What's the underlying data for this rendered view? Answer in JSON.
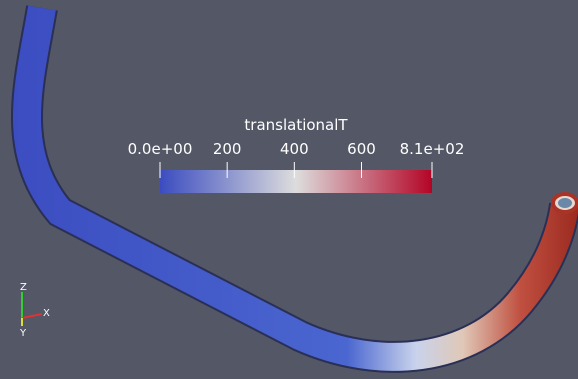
{
  "colorbar": {
    "title": "translationalT",
    "range": [
      0,
      810
    ],
    "ticks": [
      {
        "value": 0,
        "label": "0.0e+00"
      },
      200,
      400,
      600,
      {
        "value": 810,
        "label": "8.1e+02"
      }
    ]
  },
  "axes_triad": {
    "z": "Z",
    "x": "X",
    "y": "Y"
  }
}
